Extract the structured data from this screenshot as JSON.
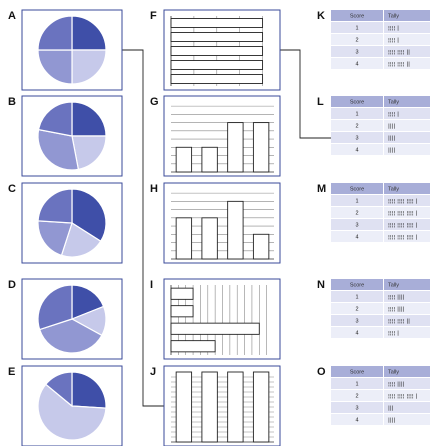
{
  "panel_labels": {
    "pies": [
      "A",
      "B",
      "C",
      "D",
      "E"
    ],
    "bars": [
      "F",
      "G",
      "H",
      "I",
      "J"
    ],
    "tables": [
      "K",
      "L",
      "M",
      "N",
      "O"
    ]
  },
  "table_headers": {
    "score": "Score",
    "tally": "Tally"
  },
  "tables": [
    {
      "rows": [
        {
          "score": "1",
          "tally": "¦¦¦¦ |"
        },
        {
          "score": "2",
          "tally": "¦¦¦¦ |"
        },
        {
          "score": "3",
          "tally": "¦¦¦¦ ¦¦¦¦ ||"
        },
        {
          "score": "4",
          "tally": "¦¦¦¦ ¦¦¦¦ ||"
        }
      ]
    },
    {
      "rows": [
        {
          "score": "1",
          "tally": "¦¦¦¦ |"
        },
        {
          "score": "2",
          "tally": "||||"
        },
        {
          "score": "3",
          "tally": "||||"
        },
        {
          "score": "4",
          "tally": "||||"
        }
      ]
    },
    {
      "rows": [
        {
          "score": "1",
          "tally": "¦¦¦¦ ¦¦¦¦ ¦¦¦¦ |"
        },
        {
          "score": "2",
          "tally": "¦¦¦¦ ¦¦¦¦ ¦¦¦¦ |"
        },
        {
          "score": "3",
          "tally": "¦¦¦¦ ¦¦¦¦ ¦¦¦¦ |"
        },
        {
          "score": "4",
          "tally": "¦¦¦¦ ¦¦¦¦ ¦¦¦¦ |"
        }
      ]
    },
    {
      "rows": [
        {
          "score": "1",
          "tally": "¦¦¦¦ ||||"
        },
        {
          "score": "2",
          "tally": "¦¦¦¦ ||||"
        },
        {
          "score": "3",
          "tally": "¦¦¦¦ ¦¦¦¦ ||"
        },
        {
          "score": "4",
          "tally": "¦¦¦¦ |"
        }
      ]
    },
    {
      "rows": [
        {
          "score": "1",
          "tally": "¦¦¦¦ ||||"
        },
        {
          "score": "2",
          "tally": "¦¦¦¦ ¦¦¦¦ ¦¦¦¦ |"
        },
        {
          "score": "3",
          "tally": "|||"
        },
        {
          "score": "4",
          "tally": "||||"
        }
      ]
    }
  ],
  "pies": [
    {
      "values": [
        25,
        25,
        25,
        25
      ]
    },
    {
      "values": [
        25,
        22,
        31,
        22
      ]
    },
    {
      "values": [
        34,
        21,
        21,
        24
      ]
    },
    {
      "values": [
        19,
        14,
        37,
        30
      ]
    },
    {
      "values": [
        26,
        60,
        14
      ]
    }
  ],
  "bars": [
    {
      "orientation": "horizontal",
      "values": [
        4,
        4,
        4,
        4,
        4
      ],
      "max": 4.5
    },
    {
      "orientation": "vertical",
      "values": [
        3,
        3,
        6,
        6
      ],
      "max": 8.5
    },
    {
      "orientation": "vertical",
      "values": [
        5,
        5,
        7,
        3
      ],
      "max": 8.5
    },
    {
      "orientation": "horizontal",
      "values": [
        3,
        3,
        12,
        6
      ],
      "max": 14
    },
    {
      "orientation": "vertical",
      "values": [
        14,
        14,
        14,
        14
      ],
      "max": 14
    }
  ],
  "colors": {
    "panel_border": "#3a4a9a",
    "pie_dark": "#3f4fa8",
    "pie_light": "#c6c9ea",
    "pie_mid": "#6a73bf",
    "pie_mid2": "#9197d2",
    "table_header": "#a8aed8",
    "table_row_odd": "#dfe1f2",
    "table_row_even": "#eceef8"
  }
}
